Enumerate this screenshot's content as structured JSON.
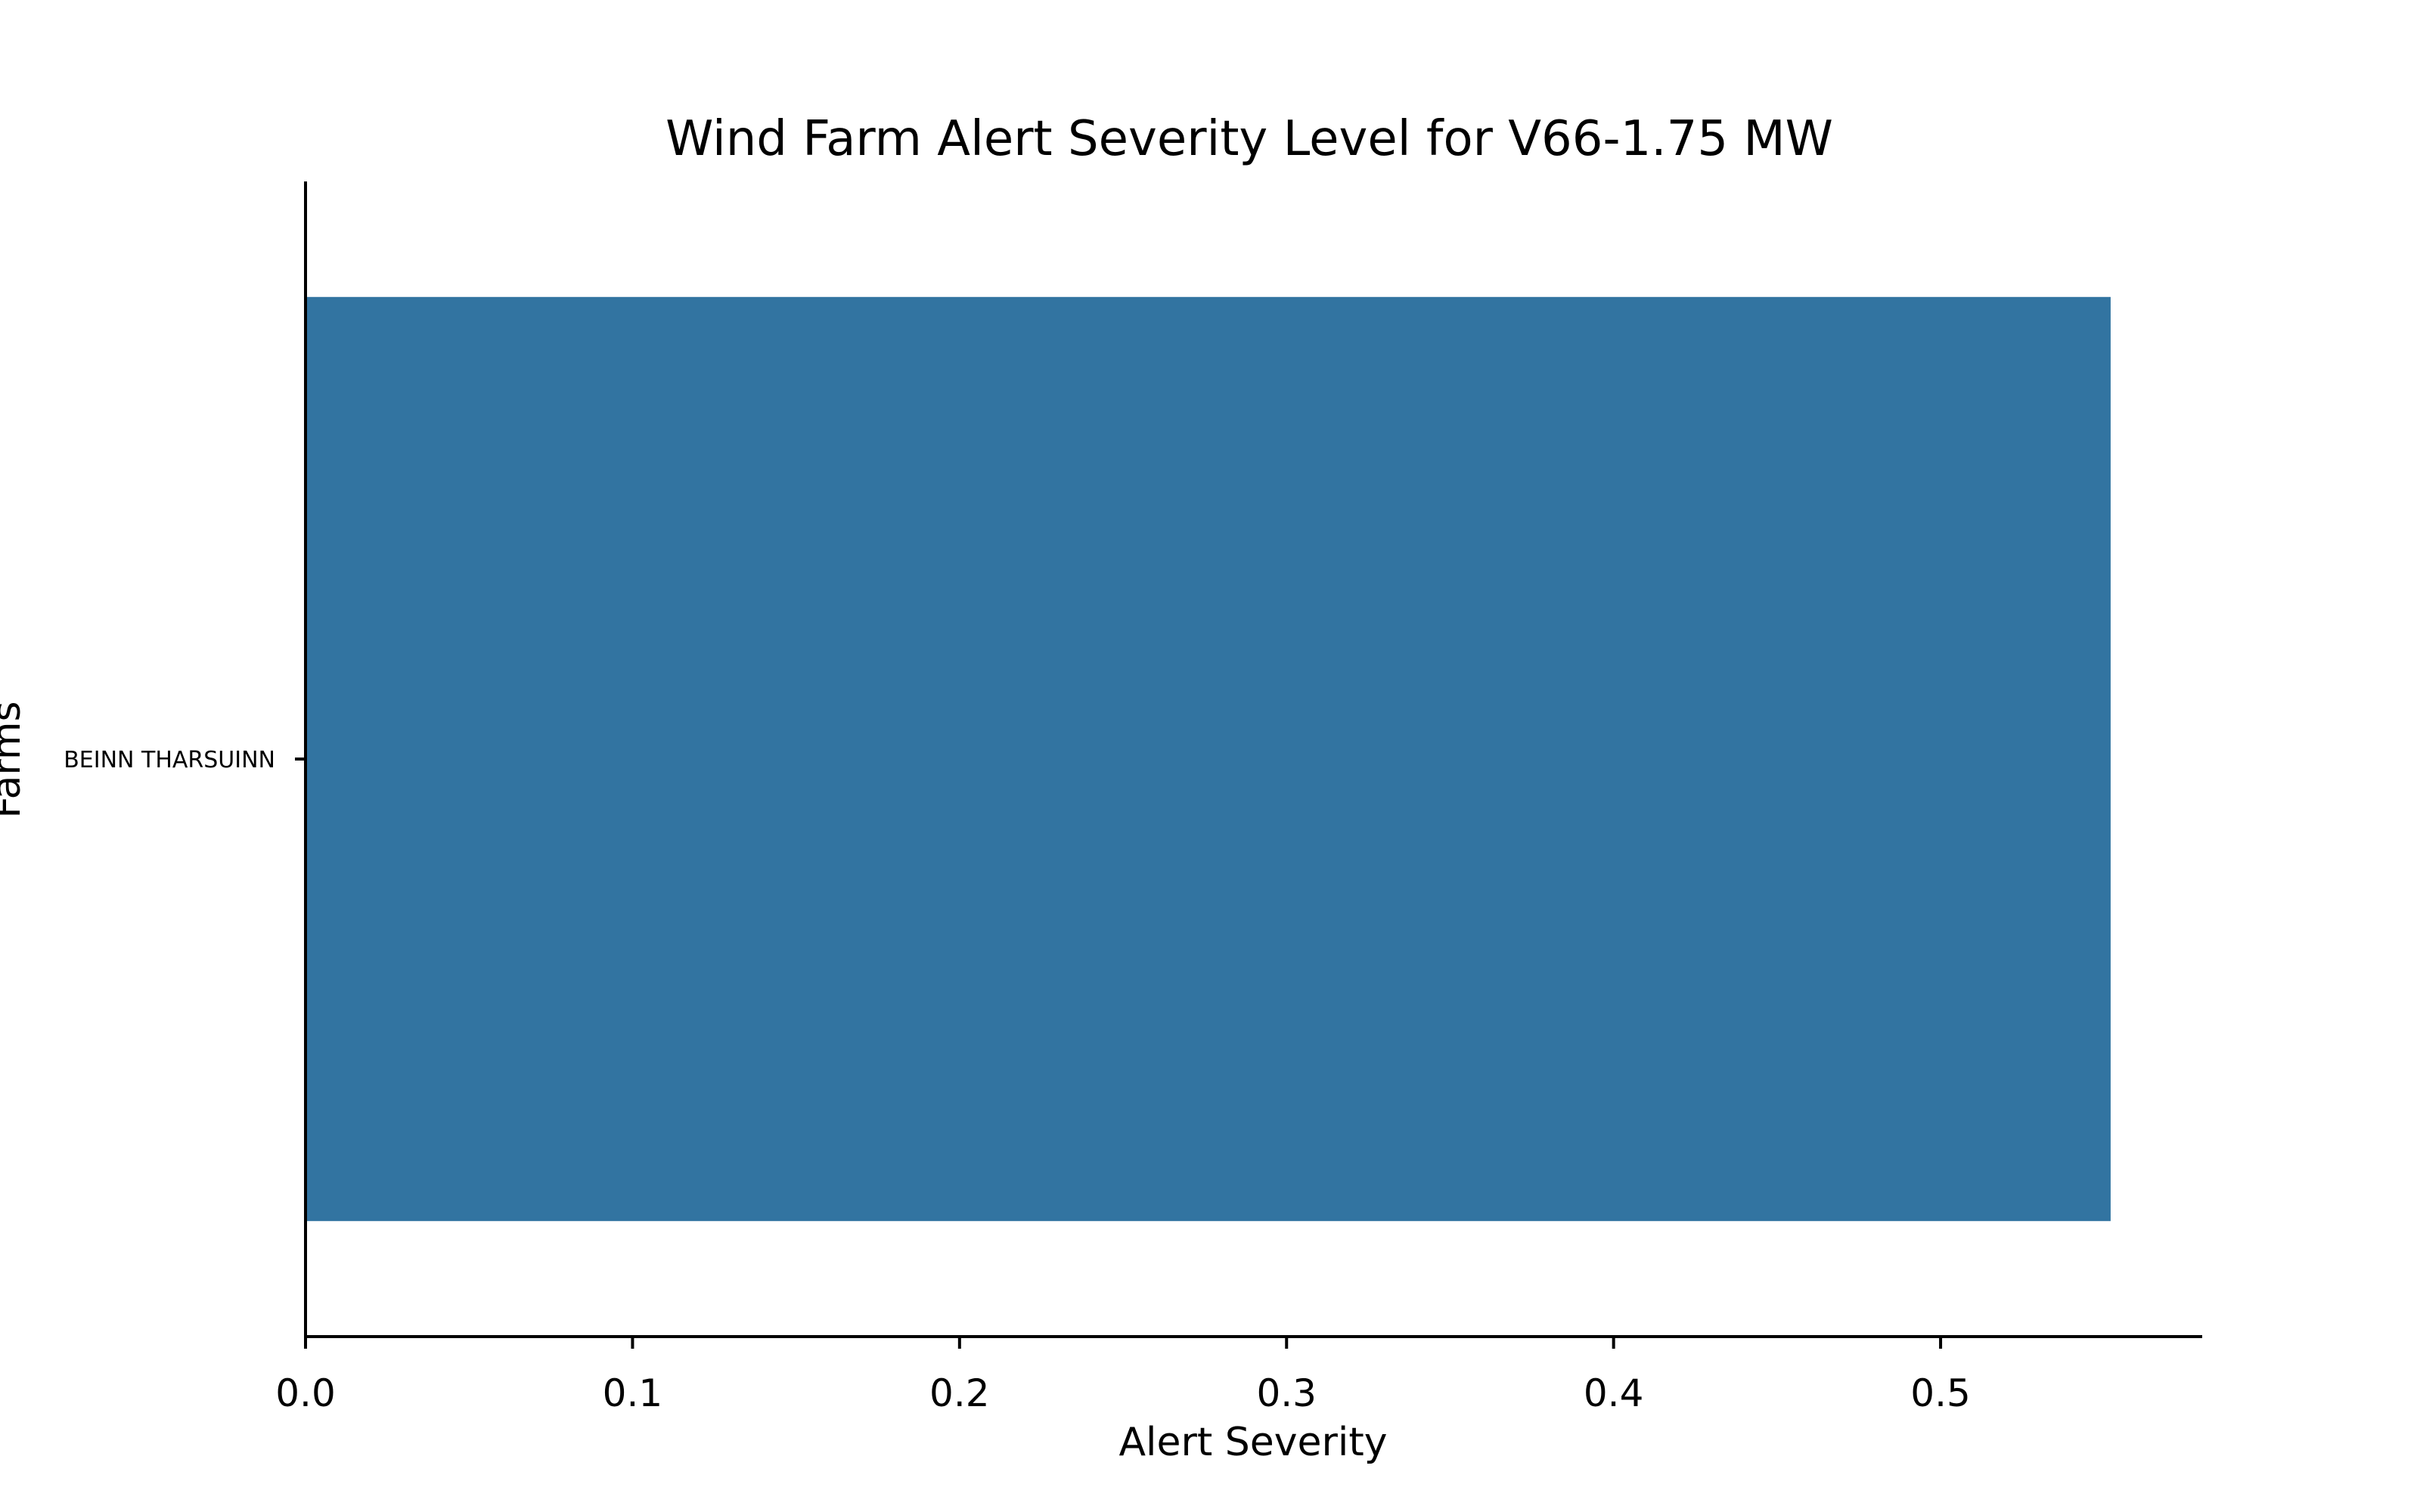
{
  "chart_data": {
    "type": "bar",
    "orientation": "horizontal",
    "title": "Wind Farm Alert Severity Level for V66-1.75 MW",
    "xlabel": "Alert Severity",
    "ylabel": "Farms",
    "categories": [
      "BEINN THARSUINN"
    ],
    "values": [
      0.552
    ],
    "xlim": [
      0,
      0.58
    ],
    "xticks": [
      0.0,
      0.1,
      0.2,
      0.3,
      0.4,
      0.5
    ],
    "xtick_labels": [
      "0.0",
      "0.1",
      "0.2",
      "0.3",
      "0.4",
      "0.5"
    ],
    "grid": false,
    "legend": "none",
    "bar_color": "#3274a1"
  }
}
